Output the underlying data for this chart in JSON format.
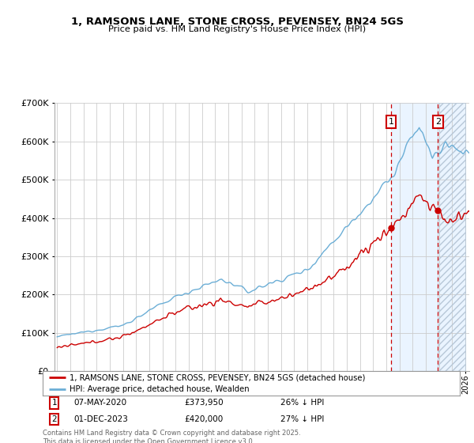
{
  "title1": "1, RAMSONS LANE, STONE CROSS, PEVENSEY, BN24 5GS",
  "title2": "Price paid vs. HM Land Registry's House Price Index (HPI)",
  "legend1": "1, RAMSONS LANE, STONE CROSS, PEVENSEY, BN24 5GS (detached house)",
  "legend2": "HPI: Average price, detached house, Wealden",
  "annotation1_date": "07-MAY-2020",
  "annotation1_price": 373950,
  "annotation1_year": 2020.36,
  "annotation2_date": "01-DEC-2023",
  "annotation2_price": 420000,
  "annotation2_year": 2023.92,
  "footnote": "Contains HM Land Registry data © Crown copyright and database right 2025.\nThis data is licensed under the Open Government Licence v3.0.",
  "hpi_color": "#6baed6",
  "price_color": "#cc0000",
  "vline_color": "#cc0000",
  "shade_color": "#ddeeff",
  "ylim_min": 0,
  "ylim_max": 700000,
  "bg_color": "#ffffff",
  "grid_color": "#cccccc"
}
